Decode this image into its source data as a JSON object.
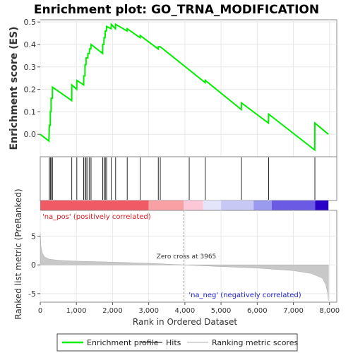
{
  "chart_data": {
    "type": "line",
    "title": "Enrichment plot: GO_TRNA_MODIFICATION",
    "xlabel": "Rank in Ordered Dataset",
    "es_panel": {
      "ylabel": "Enrichment score (ES)",
      "ylim": [
        -0.1,
        0.51
      ],
      "yticks": [
        "0.0",
        "0.1",
        "0.2",
        "0.3",
        "0.4",
        "0.5"
      ],
      "ytick_values": [
        0.0,
        0.1,
        0.2,
        0.3,
        0.4,
        0.5
      ],
      "line_color": "#00ee00",
      "profile": [
        [
          0,
          0.0
        ],
        [
          240,
          -0.03
        ],
        [
          252,
          0.04
        ],
        [
          278,
          0.04
        ],
        [
          280,
          0.1
        ],
        [
          298,
          0.1
        ],
        [
          300,
          0.16
        ],
        [
          335,
          0.16
        ],
        [
          338,
          0.21
        ],
        [
          870,
          0.15
        ],
        [
          872,
          0.22
        ],
        [
          1010,
          0.2
        ],
        [
          1012,
          0.24
        ],
        [
          1200,
          0.22
        ],
        [
          1202,
          0.26
        ],
        [
          1235,
          0.26
        ],
        [
          1238,
          0.31
        ],
        [
          1265,
          0.31
        ],
        [
          1268,
          0.34
        ],
        [
          1315,
          0.34
        ],
        [
          1318,
          0.36
        ],
        [
          1358,
          0.36
        ],
        [
          1362,
          0.38
        ],
        [
          1400,
          0.38
        ],
        [
          1405,
          0.4
        ],
        [
          1725,
          0.36
        ],
        [
          1728,
          0.4
        ],
        [
          1760,
          0.4
        ],
        [
          1765,
          0.43
        ],
        [
          1795,
          0.43
        ],
        [
          1800,
          0.46
        ],
        [
          1830,
          0.46
        ],
        [
          1835,
          0.48
        ],
        [
          1960,
          0.47
        ],
        [
          1965,
          0.49
        ],
        [
          2080,
          0.47
        ],
        [
          2085,
          0.49
        ],
        [
          2400,
          0.46
        ],
        [
          2405,
          0.47
        ],
        [
          2760,
          0.43
        ],
        [
          2765,
          0.44
        ],
        [
          3260,
          0.38
        ],
        [
          3265,
          0.39
        ],
        [
          3320,
          0.39
        ],
        [
          4560,
          0.23
        ],
        [
          4565,
          0.24
        ],
        [
          5560,
          0.11
        ],
        [
          5565,
          0.14
        ],
        [
          6310,
          0.05
        ],
        [
          6315,
          0.09
        ],
        [
          7590,
          -0.07
        ],
        [
          7595,
          0.05
        ],
        [
          7970,
          0.0
        ]
      ]
    },
    "hits_panel": {
      "hit_ranks": [
        252,
        280,
        300,
        338,
        872,
        1012,
        1202,
        1238,
        1268,
        1318,
        1362,
        1405,
        1728,
        1765,
        1800,
        1835,
        1965,
        2085,
        2405,
        2765,
        3265,
        3320,
        4120,
        4565,
        5565,
        6315,
        7595
      ]
    },
    "ranking_panel": {
      "ylabel": "Ranked list metric (PreRanked)",
      "ylim": [
        -6.5,
        9.5
      ],
      "yticks": [
        "-5",
        "0",
        "5"
      ],
      "ytick_values": [
        -5,
        0,
        5
      ],
      "x_ticks": [
        "0",
        "1,000",
        "2,000",
        "3,000",
        "4,000",
        "5,000",
        "6,000",
        "7,000",
        "8,000"
      ],
      "x_tick_values": [
        0,
        1000,
        2000,
        3000,
        4000,
        5000,
        6000,
        7000,
        8000
      ],
      "xlim": [
        0,
        8200
      ],
      "n_genes": 7970,
      "metric_curve": [
        [
          0,
          5.5
        ],
        [
          20,
          3.2
        ],
        [
          60,
          2.0
        ],
        [
          120,
          1.4
        ],
        [
          250,
          1.0
        ],
        [
          500,
          0.8
        ],
        [
          1000,
          0.65
        ],
        [
          2000,
          0.48
        ],
        [
          3000,
          0.28
        ],
        [
          3965,
          0.0
        ],
        [
          5000,
          -0.3
        ],
        [
          6000,
          -0.55
        ],
        [
          7000,
          -1.0
        ],
        [
          7500,
          -1.5
        ],
        [
          7800,
          -2.3
        ],
        [
          7900,
          -3.5
        ],
        [
          7950,
          -5.0
        ],
        [
          7970,
          -6.2
        ]
      ],
      "pos_label": "'na_pos' (positively correlated)",
      "neg_label": "'na_neg' (negatively correlated)",
      "zero_cross_label": "Zero cross at 3965",
      "zero_cross": 3965
    },
    "heatmap_segments": [
      {
        "from": 0,
        "to": 3000,
        "color": "#f05a64"
      },
      {
        "from": 3000,
        "to": 3965,
        "color": "#f9a0a4"
      },
      {
        "from": 3965,
        "to": 4500,
        "color": "#fcc8d8"
      },
      {
        "from": 4500,
        "to": 5000,
        "color": "#e4e4fa"
      },
      {
        "from": 5000,
        "to": 5900,
        "color": "#c8c8f4"
      },
      {
        "from": 5900,
        "to": 6400,
        "color": "#9a9aee"
      },
      {
        "from": 6400,
        "to": 7600,
        "color": "#6a5ae4"
      },
      {
        "from": 7600,
        "to": 7970,
        "color": "#2a00c8"
      }
    ],
    "legend": {
      "placement": "bottom",
      "entries": [
        {
          "label": "Enrichment profile",
          "color": "#00ee00"
        },
        {
          "label": "Hits",
          "color": "#555555"
        },
        {
          "label": "Ranking metric scores",
          "color": "#cccccc"
        }
      ]
    }
  }
}
